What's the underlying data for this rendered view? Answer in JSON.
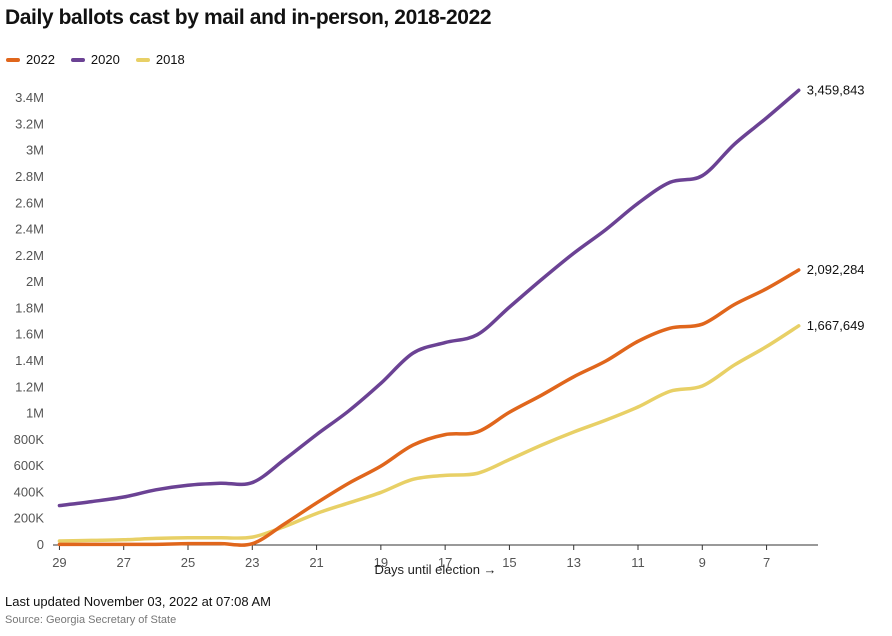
{
  "chart_data": {
    "type": "line",
    "title": "Daily ballots cast by mail and in-person, 2018-2022",
    "xlabel": "Days until election →",
    "ylabel": "",
    "x": [
      29,
      28,
      27,
      26,
      25,
      24,
      23,
      22,
      21,
      20,
      19,
      18,
      17,
      16,
      15,
      14,
      13,
      12,
      11,
      10,
      9,
      8,
      7,
      6
    ],
    "xlim": [
      29.2,
      5.4
    ],
    "ylim": [
      0,
      3500000
    ],
    "xticks": [
      29,
      27,
      25,
      23,
      21,
      19,
      17,
      15,
      13,
      11,
      9,
      7
    ],
    "xtick_labels": [
      "29",
      "27",
      "25",
      "23",
      "21",
      "19",
      "17",
      "15",
      "13",
      "11",
      "9",
      "7"
    ],
    "yticks": [
      0,
      200000,
      400000,
      600000,
      800000,
      1000000,
      1200000,
      1400000,
      1600000,
      1800000,
      2000000,
      2200000,
      2400000,
      2600000,
      2800000,
      3000000,
      3200000,
      3400000
    ],
    "ytick_labels": [
      "0",
      "200K",
      "400K",
      "600K",
      "800K",
      "1M",
      "1.2M",
      "1.4M",
      "1.6M",
      "1.8M",
      "2M",
      "2.2M",
      "2.4M",
      "2.6M",
      "2.8M",
      "3M",
      "3.2M",
      "3.4M"
    ],
    "legend_position": "top-left",
    "series": [
      {
        "name": "2022",
        "color": "#e0661c",
        "values": [
          5000,
          5000,
          5000,
          5000,
          10000,
          10000,
          10000,
          160000,
          320000,
          470000,
          600000,
          760000,
          840000,
          860000,
          1010000,
          1140000,
          1280000,
          1400000,
          1550000,
          1650000,
          1680000,
          1830000,
          1950000,
          2092284
        ],
        "end_label": "2,092,284"
      },
      {
        "name": "2020",
        "color": "#6b4294",
        "values": [
          300000,
          330000,
          365000,
          420000,
          455000,
          470000,
          475000,
          650000,
          840000,
          1020000,
          1230000,
          1460000,
          1540000,
          1600000,
          1810000,
          2020000,
          2220000,
          2400000,
          2600000,
          2760000,
          2810000,
          3050000,
          3250000,
          3459843
        ],
        "end_label": "3,459,843"
      },
      {
        "name": "2018",
        "color": "#e8d066",
        "values": [
          30000,
          35000,
          40000,
          50000,
          55000,
          55000,
          60000,
          140000,
          240000,
          320000,
          400000,
          500000,
          530000,
          545000,
          650000,
          760000,
          860000,
          950000,
          1050000,
          1170000,
          1210000,
          1370000,
          1510000,
          1667649
        ],
        "end_label": "1,667,649"
      }
    ]
  },
  "footer": {
    "updated": "Last updated November 03, 2022 at 07:08 AM",
    "source": "Source: Georgia Secretary of State"
  }
}
